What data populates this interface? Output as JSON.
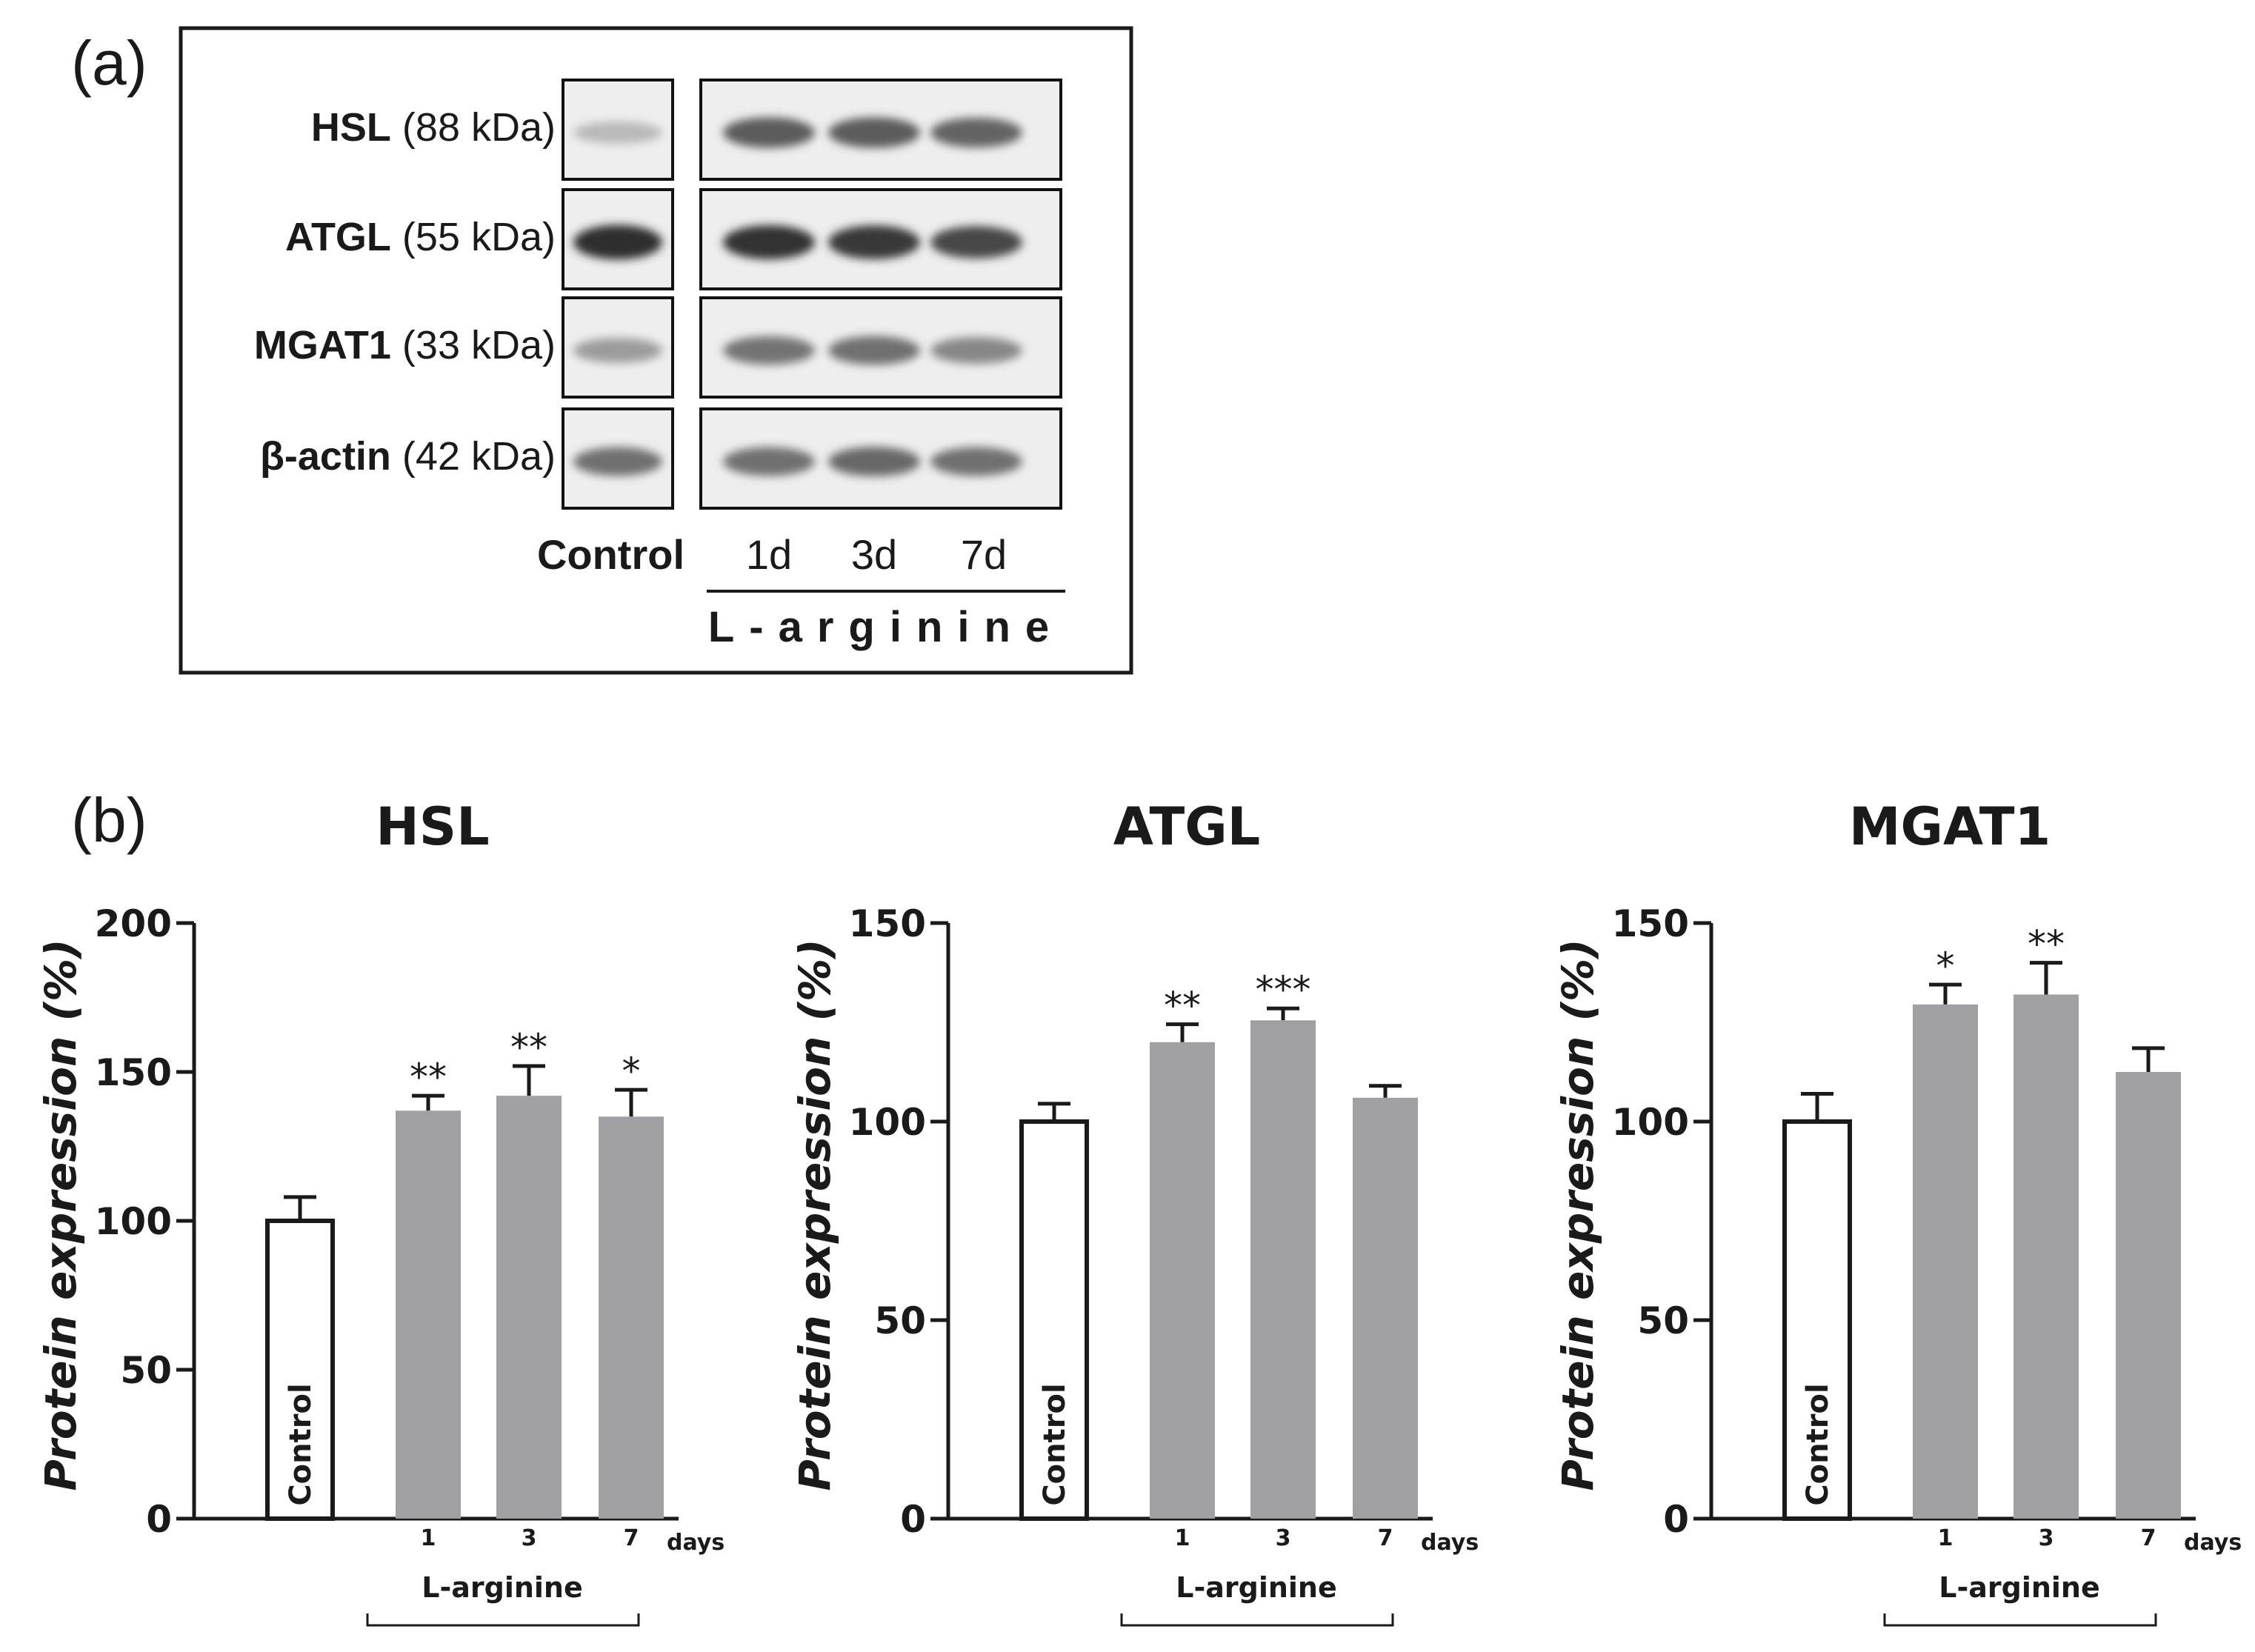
{
  "panel_a": {
    "panel_label": "(a)",
    "blots": [
      {
        "name": "HSL",
        "mw": " (88 kDa)",
        "band_intensity": {
          "control": 0.25,
          "d1": 0.72,
          "d3": 0.72,
          "d7": 0.68
        }
      },
      {
        "name": "ATGL",
        "mw": " (55 kDa)",
        "band_intensity": {
          "control": 0.95,
          "d1": 0.92,
          "d3": 0.9,
          "d7": 0.82
        }
      },
      {
        "name": "MGAT1",
        "mw": " (33 kDa)",
        "band_intensity": {
          "control": 0.4,
          "d1": 0.6,
          "d3": 0.62,
          "d7": 0.5
        }
      },
      {
        "name": "β-actin",
        "mw": " (42 kDa)",
        "band_intensity": {
          "control": 0.62,
          "d1": 0.62,
          "d3": 0.66,
          "d7": 0.62
        }
      }
    ],
    "lanes": {
      "control": "Control",
      "d1": "1d",
      "d3": "3d",
      "d7": "7d"
    },
    "treatment_label": "L-arginine"
  },
  "panel_b": {
    "panel_label": "(b)"
  },
  "chart_data": [
    {
      "type": "bar",
      "title": "HSL",
      "ylabel": "Protein expression (%)",
      "xlabel": "L-arginine",
      "x_unit": "days",
      "ylim": [
        0,
        200
      ],
      "yticks": [
        0,
        50,
        100,
        150,
        200
      ],
      "categories": [
        "Control",
        "1",
        "3",
        "7"
      ],
      "values": [
        100,
        137,
        142,
        135
      ],
      "errors": [
        8,
        5,
        10,
        9
      ],
      "significance": [
        "",
        "**",
        "**",
        "*"
      ],
      "colors": [
        "#ffffff",
        "#a0a0a4",
        "#a0a0a4",
        "#a0a0a4"
      ]
    },
    {
      "type": "bar",
      "title": "ATGL",
      "ylabel": "Protein expression (%)",
      "xlabel": "L-arginine",
      "x_unit": "days",
      "ylim": [
        0,
        150
      ],
      "yticks": [
        0,
        50,
        100,
        150
      ],
      "categories": [
        "Control",
        "1",
        "3",
        "7"
      ],
      "values": [
        100,
        120,
        125.5,
        106
      ],
      "errors": [
        4.5,
        4.5,
        3,
        3
      ],
      "significance": [
        "",
        "**",
        "***",
        ""
      ],
      "colors": [
        "#ffffff",
        "#a0a0a4",
        "#a0a0a4",
        "#a0a0a4"
      ]
    },
    {
      "type": "bar",
      "title": "MGAT1",
      "ylabel": "Protein expression (%)",
      "xlabel": "L-arginine",
      "x_unit": "days",
      "ylim": [
        0,
        150
      ],
      "yticks": [
        0,
        50,
        100,
        150
      ],
      "categories": [
        "Control",
        "1",
        "3",
        "7"
      ],
      "values": [
        100,
        129.5,
        132,
        112.5
      ],
      "errors": [
        7,
        5,
        8,
        6
      ],
      "significance": [
        "",
        "*",
        "**",
        ""
      ],
      "colors": [
        "#ffffff",
        "#a0a0a4",
        "#a0a0a4",
        "#a0a0a4"
      ]
    }
  ]
}
